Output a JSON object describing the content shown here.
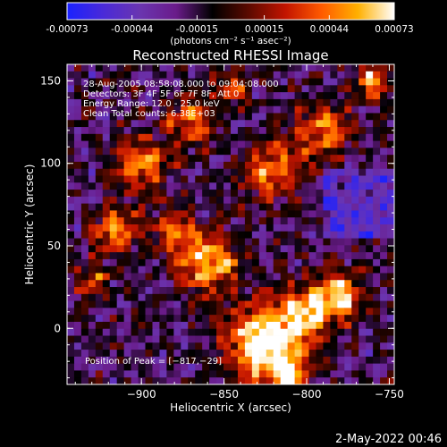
{
  "colorbar": {
    "ticks": [
      "-0.00073",
      "-0.00044",
      "-0.00015",
      "0.00015",
      "0.00044",
      "0.00073"
    ],
    "tick_values": [
      -0.00073,
      -0.00044,
      -0.00015,
      0.00015,
      0.00044,
      0.00073
    ],
    "unit_label": "(photons cm⁻² s⁻¹ asec⁻²)",
    "stops": [
      "#1a22ff",
      "#4a2ad8",
      "#6a35b0",
      "#6a1b8a",
      "#000000",
      "#5c0a00",
      "#c21400",
      "#ff5a00",
      "#ffb000",
      "#ffffff"
    ]
  },
  "chart_data": {
    "type": "heatmap",
    "title": "Reconstructed RHESSI Image",
    "xlabel": "Heliocentric X (arcsec)",
    "ylabel": "Heliocentric Y (arcsec)",
    "xlim": [
      -945,
      -747
    ],
    "ylim": [
      -34,
      160
    ],
    "x_ticks": [
      -900,
      -850,
      -800,
      -750
    ],
    "x_tick_labels": [
      "−900",
      "−850",
      "−800",
      "−750"
    ],
    "y_ticks": [
      0,
      50,
      100,
      150
    ],
    "y_tick_labels": [
      "0",
      "50",
      "100",
      "150"
    ],
    "peak": {
      "x": -817,
      "y": -29
    },
    "annotations": [
      "28-Aug-2005 08:58:08.000 to 09:04:08.000",
      "Detectors: 3F 4F 5F 6F 7F 8F, Att 0",
      "Energy Range: 12.0 - 25.0 keV",
      "Clean     Total counts: 6.38E+03"
    ],
    "peak_annotation": "Position of Peak = [−817,−29]"
  },
  "footer": {
    "timestamp": "2-May-2022 00:46"
  }
}
